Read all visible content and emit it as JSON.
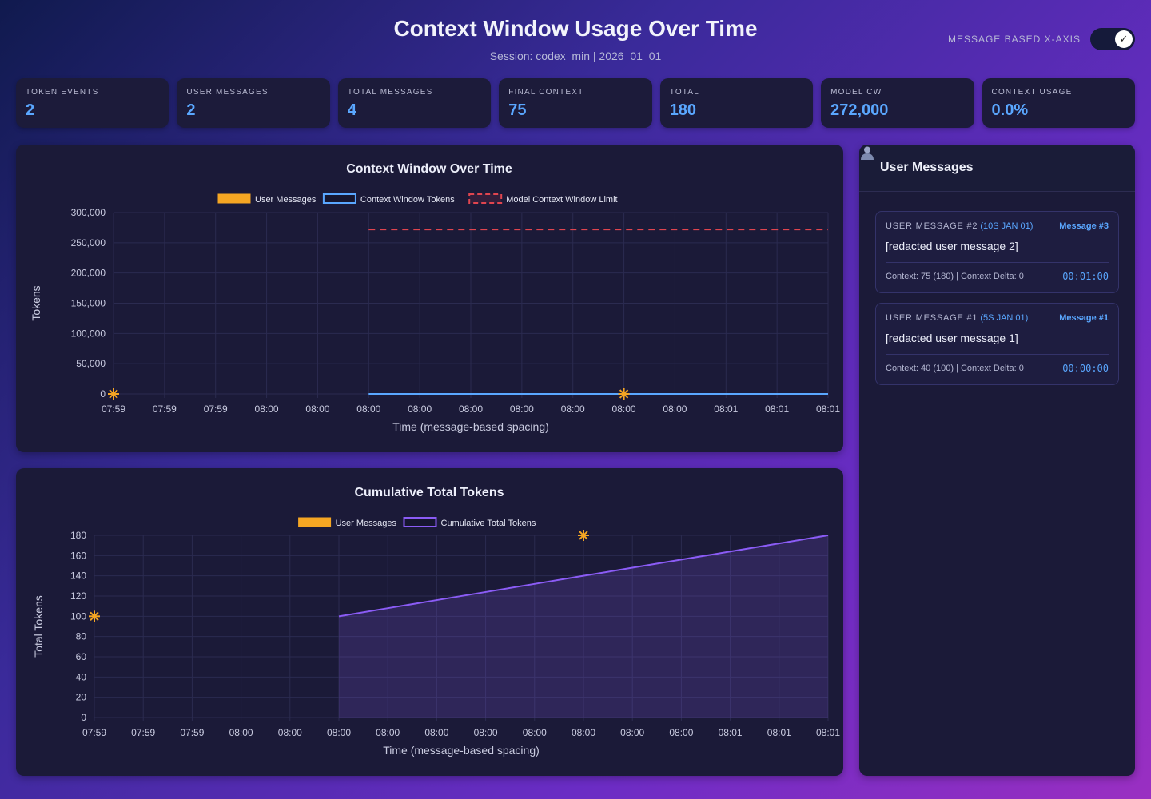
{
  "header": {
    "title": "Context Window Usage Over Time",
    "subtitle": "Session: codex_min | 2026_01_01",
    "toggle_label": "MESSAGE BASED X-AXIS",
    "toggle_on": true
  },
  "stats": [
    {
      "label": "TOKEN EVENTS",
      "value": "2"
    },
    {
      "label": "USER MESSAGES",
      "value": "2"
    },
    {
      "label": "TOTAL MESSAGES",
      "value": "4"
    },
    {
      "label": "FINAL CONTEXT",
      "value": "75"
    },
    {
      "label": "TOTAL",
      "value": "180"
    },
    {
      "label": "MODEL CW",
      "value": "272,000"
    },
    {
      "label": "CONTEXT USAGE",
      "value": "0.0%"
    }
  ],
  "colors": {
    "accent": "#5aa7ff",
    "user_messages": "#f5a623",
    "context_tokens": "#5aa7ff",
    "limit": "#e0454f",
    "cumulative": "#8b5cf6"
  },
  "sidebar": {
    "icon": "user-icon",
    "title": "User Messages",
    "messages": [
      {
        "head": "USER MESSAGE #2",
        "ts": "(10S JAN 01)",
        "num": "Message #3",
        "text": "[redacted user message 2]",
        "ctx": "Context: 75 (180) | Context Delta: 0",
        "time": "00:01:00"
      },
      {
        "head": "USER MESSAGE #1",
        "ts": "(5S JAN 01)",
        "num": "Message #1",
        "text": "[redacted user message 1]",
        "ctx": "Context: 40 (100) | Context Delta: 0",
        "time": "00:00:00"
      }
    ]
  },
  "chart_data": [
    {
      "type": "line",
      "title": "Context Window Over Time",
      "xlabel": "Time (message-based spacing)",
      "ylabel": "Tokens",
      "x": [
        "07:59",
        "07:59",
        "07:59",
        "08:00",
        "08:00",
        "08:00",
        "08:00",
        "08:00",
        "08:00",
        "08:00",
        "08:00",
        "08:00",
        "08:01",
        "08:01",
        "08:01"
      ],
      "ylim": [
        0,
        300000
      ],
      "yticks": [
        "0",
        "50,000",
        "100,000",
        "150,000",
        "200,000",
        "250,000",
        "300,000"
      ],
      "grid": true,
      "legend_position": "top",
      "series": [
        {
          "name": "User Messages",
          "kind": "marker",
          "points": [
            {
              "x_index": 0,
              "y": 0
            },
            {
              "x_index": 10,
              "y": 0
            }
          ]
        },
        {
          "name": "Context Window Tokens",
          "kind": "line",
          "values": [
            null,
            null,
            null,
            null,
            null,
            40,
            40,
            40,
            45,
            55,
            60,
            65,
            70,
            72,
            75
          ]
        },
        {
          "name": "Model Context Window Limit",
          "kind": "dashed",
          "values": [
            null,
            null,
            null,
            null,
            null,
            272000,
            272000,
            272000,
            272000,
            272000,
            272000,
            272000,
            272000,
            272000,
            272000
          ]
        }
      ]
    },
    {
      "type": "area",
      "title": "Cumulative Total Tokens",
      "xlabel": "Time (message-based spacing)",
      "ylabel": "Total Tokens",
      "x": [
        "07:59",
        "07:59",
        "07:59",
        "08:00",
        "08:00",
        "08:00",
        "08:00",
        "08:00",
        "08:00",
        "08:00",
        "08:00",
        "08:00",
        "08:00",
        "08:01",
        "08:01",
        "08:01"
      ],
      "ylim": [
        0,
        180
      ],
      "yticks": [
        "0",
        "20",
        "40",
        "60",
        "80",
        "100",
        "120",
        "140",
        "160",
        "180"
      ],
      "grid": true,
      "legend_position": "top",
      "series": [
        {
          "name": "User Messages",
          "kind": "marker",
          "points": [
            {
              "x_index": 0,
              "y": 100
            },
            {
              "x_index": 10,
              "y": 180
            }
          ]
        },
        {
          "name": "Cumulative Total Tokens",
          "kind": "area",
          "values": [
            null,
            null,
            null,
            null,
            null,
            100,
            108,
            116,
            124,
            132,
            140,
            148,
            156,
            164,
            172,
            180
          ]
        }
      ]
    }
  ]
}
